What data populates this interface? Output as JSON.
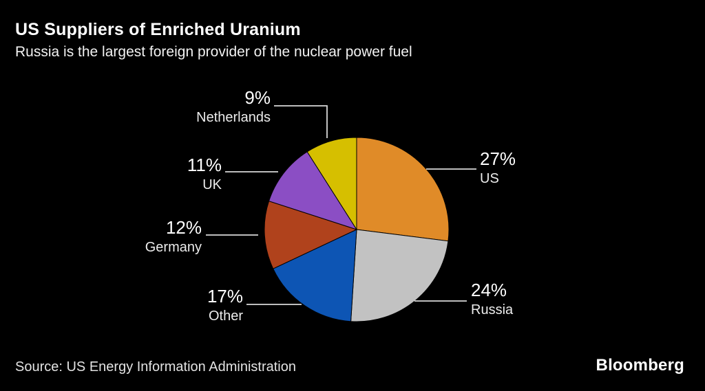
{
  "header": {
    "title": "US Suppliers of Enriched Uranium",
    "subtitle": "Russia is the largest foreign provider of the nuclear power fuel"
  },
  "chart_data": {
    "type": "pie",
    "title": "US Suppliers of Enriched Uranium",
    "subtitle": "Russia is the largest foreign provider of the nuclear power fuel",
    "unit": "%",
    "start_angle_deg": 0,
    "direction": "clockwise",
    "legend_position": "callout-labels",
    "slices": [
      {
        "label": "US",
        "value": 27,
        "percent_label": "27%",
        "color": "#E08B28"
      },
      {
        "label": "Russia",
        "value": 24,
        "percent_label": "24%",
        "color": "#C2C2C2"
      },
      {
        "label": "Other",
        "value": 17,
        "percent_label": "17%",
        "color": "#0D55B4"
      },
      {
        "label": "Germany",
        "value": 12,
        "percent_label": "12%",
        "color": "#B0421C"
      },
      {
        "label": "UK",
        "value": 11,
        "percent_label": "11%",
        "color": "#8B4EC4"
      },
      {
        "label": "Netherlands",
        "value": 9,
        "percent_label": "9%",
        "color": "#D6BF00"
      }
    ]
  },
  "footer": {
    "source": "Source: US Energy Information Administration",
    "brand": "Bloomberg"
  }
}
